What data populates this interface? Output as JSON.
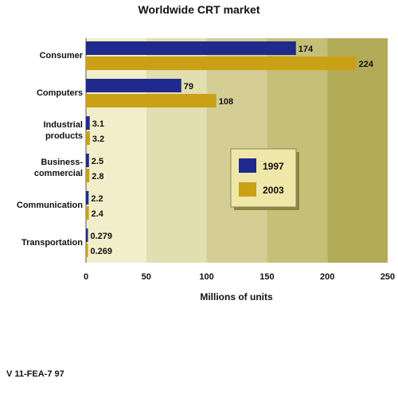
{
  "chart_data": {
    "type": "bar",
    "title": "Worldwide CRT market",
    "xlabel": "Millions of units",
    "ylabel": "",
    "xlim": [
      0,
      250
    ],
    "ticks": [
      "0",
      "50",
      "100",
      "150",
      "200",
      "250"
    ],
    "categories": [
      [
        "Consumer"
      ],
      [
        "Computers"
      ],
      [
        "Industrial",
        "products"
      ],
      [
        "Business-",
        "commercial"
      ],
      [
        "Communication"
      ],
      [
        "Transportation"
      ]
    ],
    "series": [
      {
        "name": "1997",
        "color": "#1f2a8c",
        "values": [
          174,
          79,
          3.1,
          2.5,
          2.2,
          0.279
        ],
        "labels": [
          "174",
          "79",
          "3.1",
          "2.5",
          "2.2",
          "0.279"
        ]
      },
      {
        "name": "2003",
        "color": "#c9a016",
        "values": [
          224,
          108,
          3.2,
          2.8,
          2.4,
          0.269
        ],
        "labels": [
          "224",
          "108",
          "3.2",
          "2.8",
          "2.4",
          "0.269"
        ]
      }
    ],
    "band_colors": [
      "#f1eec9",
      "#e3deb0",
      "#d4ce95",
      "#c6bf78",
      "#b2ab57"
    ],
    "legend_position": "right-center",
    "grid": false
  },
  "footer": "V 11-FEA-7 97"
}
